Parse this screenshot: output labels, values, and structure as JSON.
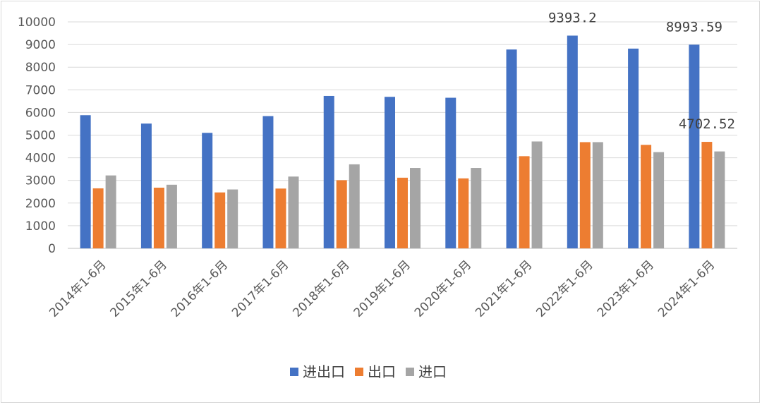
{
  "chart_data": {
    "type": "bar",
    "categories": [
      "2014年1-6月",
      "2015年1-6月",
      "2016年1-6月",
      "2017年1-6月",
      "2018年1-6月",
      "2019年1-6月",
      "2020年1-6月",
      "2021年1-6月",
      "2022年1-6月",
      "2023年1-6月",
      "2024年1-6月"
    ],
    "series": [
      {
        "name": "进出口",
        "color": "#4472c4",
        "values": [
          5880,
          5510,
          5100,
          5840,
          6730,
          6690,
          6650,
          8780,
          9393.2,
          8820,
          8993.59
        ]
      },
      {
        "name": "出口",
        "color": "#ed7d31",
        "values": [
          2650,
          2680,
          2470,
          2640,
          3010,
          3120,
          3090,
          4070,
          4690,
          4570,
          4702.52
        ]
      },
      {
        "name": "进口",
        "color": "#a5a5a5",
        "values": [
          3220,
          2810,
          2600,
          3170,
          3710,
          3550,
          3550,
          4720,
          4690,
          4250,
          4280
        ]
      }
    ],
    "data_labels": [
      {
        "series": 0,
        "index": 8,
        "text": "9393.2"
      },
      {
        "series": 0,
        "index": 10,
        "text": "8993.59"
      },
      {
        "series": 1,
        "index": 10,
        "text": "4702.52"
      }
    ],
    "ylim": [
      0,
      10000
    ],
    "yticks": [
      0,
      1000,
      2000,
      3000,
      4000,
      5000,
      6000,
      7000,
      8000,
      9000,
      10000
    ],
    "grid": true,
    "legend": "bottom",
    "title": "",
    "xlabel": "",
    "ylabel": ""
  }
}
